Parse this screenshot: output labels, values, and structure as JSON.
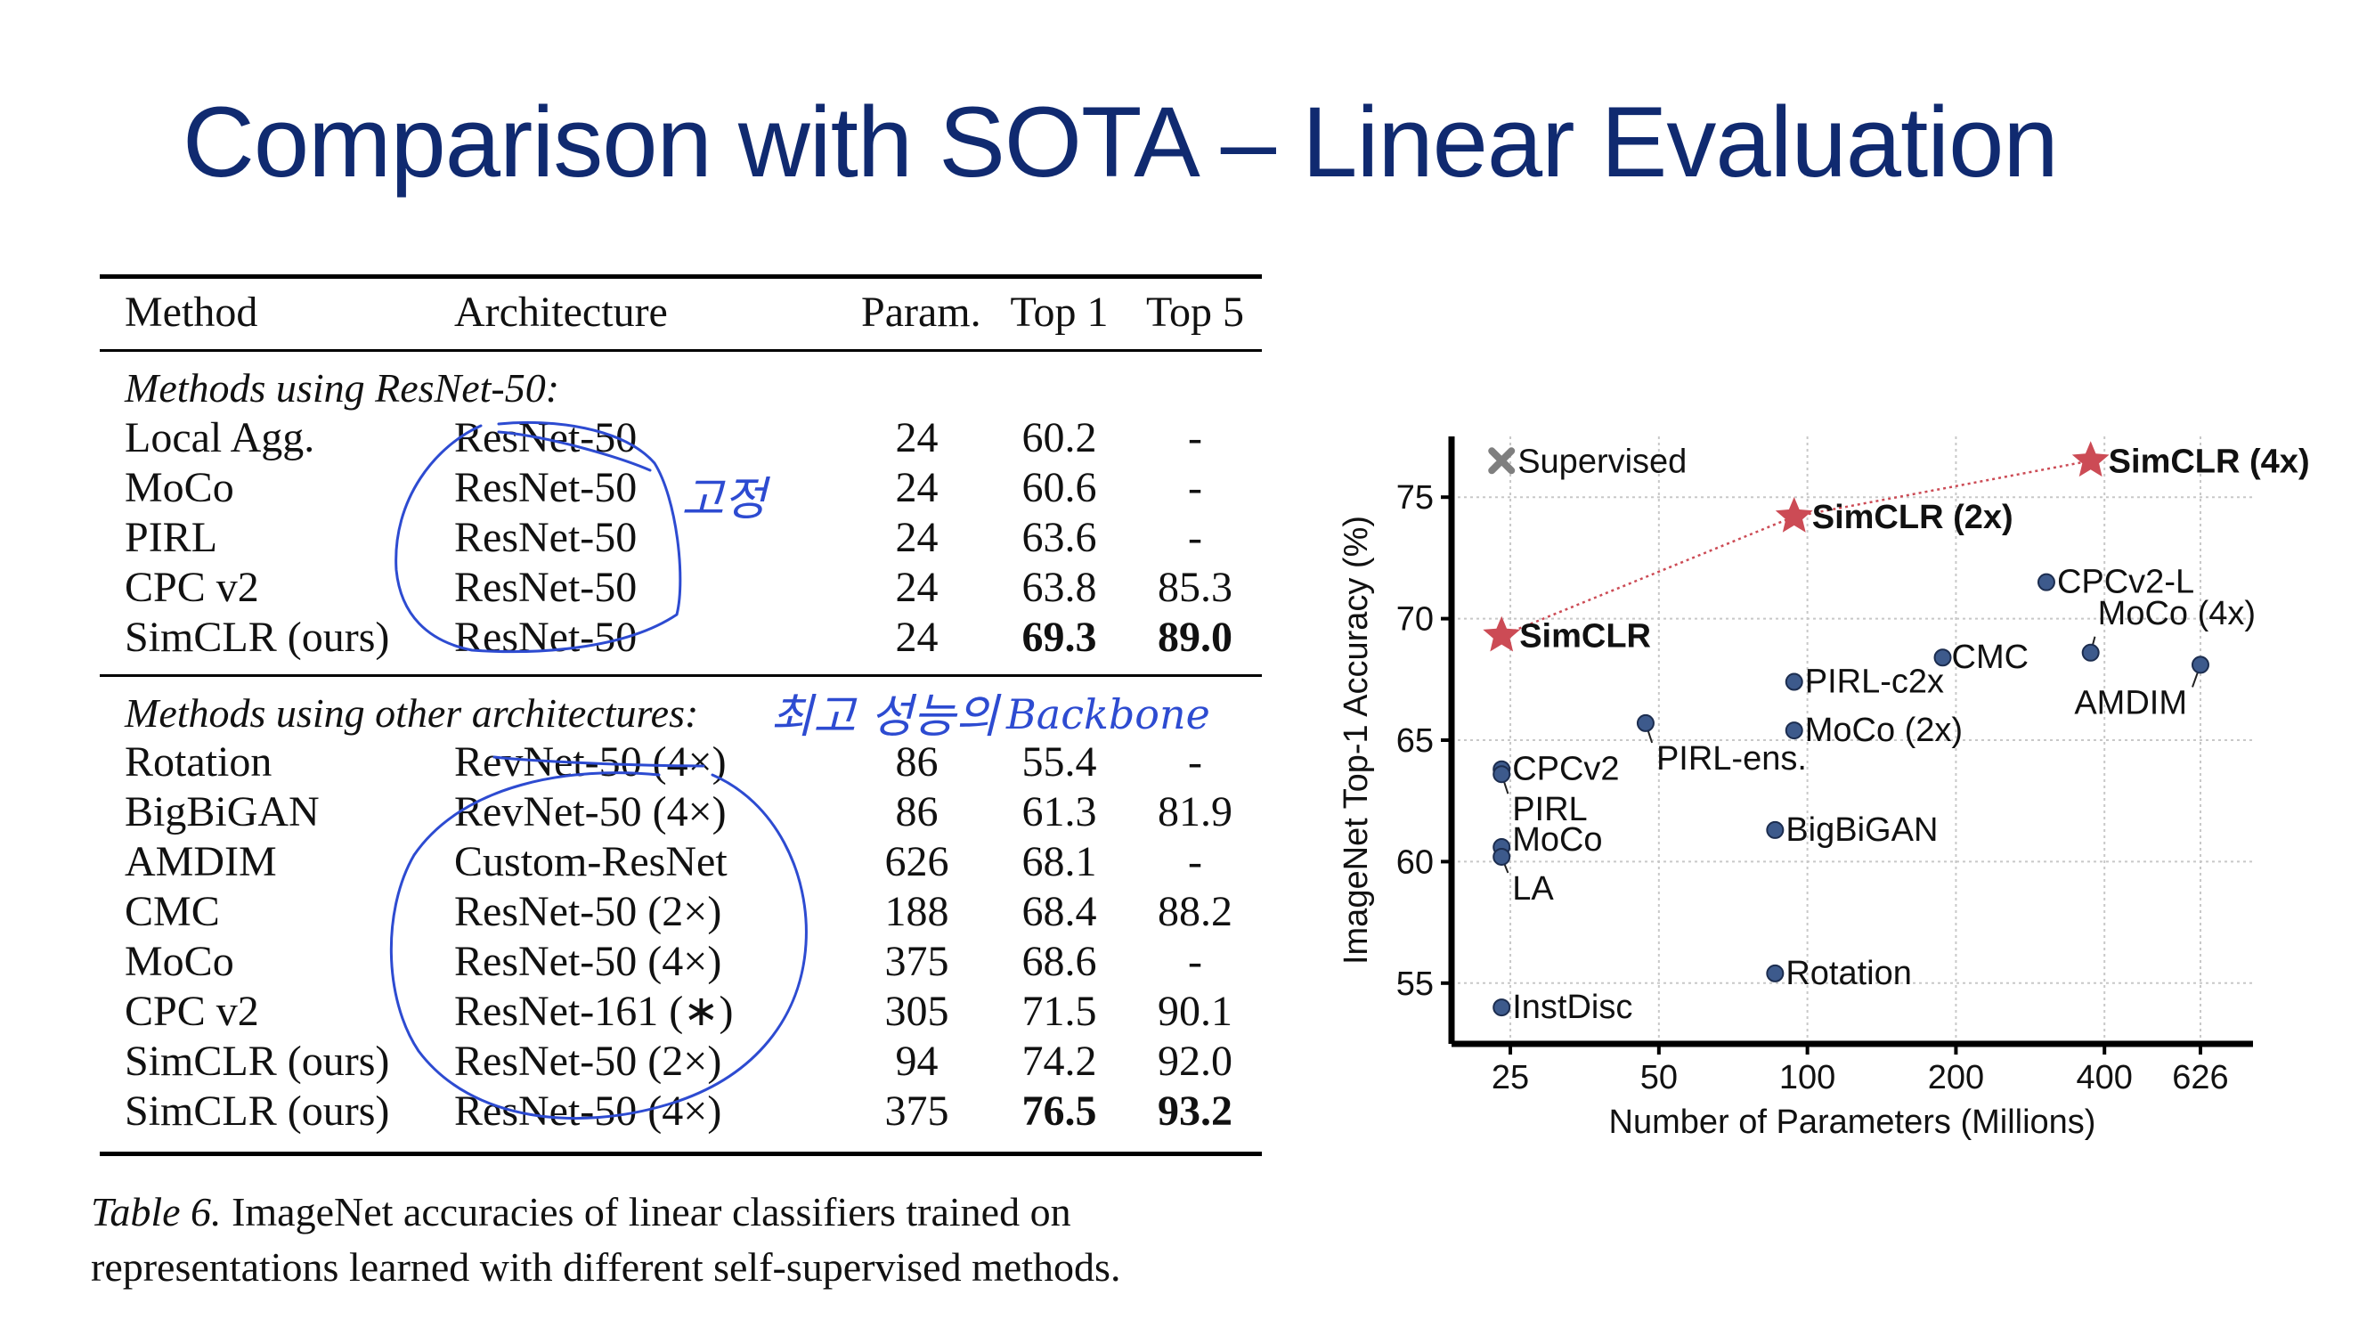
{
  "slide": {
    "title": "Comparison with SOTA – Linear Evaluation"
  },
  "table": {
    "headers": [
      "Method",
      "Architecture",
      "Param.",
      "Top 1",
      "Top 5"
    ],
    "section1_label": "Methods using ResNet-50:",
    "section1_rows": [
      {
        "method": "Local Agg.",
        "arch": "ResNet-50",
        "param": "24",
        "top1": "60.2",
        "top5": "-"
      },
      {
        "method": "MoCo",
        "arch": "ResNet-50",
        "param": "24",
        "top1": "60.6",
        "top5": "-"
      },
      {
        "method": "PIRL",
        "arch": "ResNet-50",
        "param": "24",
        "top1": "63.6",
        "top5": "-"
      },
      {
        "method": "CPC v2",
        "arch": "ResNet-50",
        "param": "24",
        "top1": "63.8",
        "top5": "85.3"
      },
      {
        "method": "SimCLR (ours)",
        "arch": "ResNet-50",
        "param": "24",
        "top1": "69.3",
        "top5": "89.0",
        "bold": true
      }
    ],
    "section2_label": "Methods using other architectures:",
    "section2_rows": [
      {
        "method": "Rotation",
        "arch": "RevNet-50 (4×)",
        "param": "86",
        "top1": "55.4",
        "top5": "-"
      },
      {
        "method": "BigBiGAN",
        "arch": "RevNet-50 (4×)",
        "param": "86",
        "top1": "61.3",
        "top5": "81.9"
      },
      {
        "method": "AMDIM",
        "arch": "Custom-ResNet",
        "param": "626",
        "top1": "68.1",
        "top5": "-"
      },
      {
        "method": "CMC",
        "arch": "ResNet-50 (2×)",
        "param": "188",
        "top1": "68.4",
        "top5": "88.2"
      },
      {
        "method": "MoCo",
        "arch": "ResNet-50 (4×)",
        "param": "375",
        "top1": "68.6",
        "top5": "-"
      },
      {
        "method": "CPC v2",
        "arch": "ResNet-161 (∗)",
        "param": "305",
        "top1": "71.5",
        "top5": "90.1"
      },
      {
        "method": "SimCLR (ours)",
        "arch": "ResNet-50 (2×)",
        "param": "94",
        "top1": "74.2",
        "top5": "92.0"
      },
      {
        "method": "SimCLR (ours)",
        "arch": "ResNet-50 (4×)",
        "param": "375",
        "top1": "76.5",
        "top5": "93.2",
        "bold": true
      }
    ],
    "caption_label": "Table 6.",
    "caption_text": " ImageNet accuracies of linear classifiers trained on representations learned with different self-supervised methods."
  },
  "annotations": {
    "note1": "고정",
    "note2": "최고 성능의",
    "note3": "Backbone",
    "ink_color": "#2d4bd1"
  },
  "chart_data": {
    "type": "scatter",
    "xlabel": "Number of Parameters (Millions)",
    "ylabel": "ImageNet Top-1 Accuracy (%)",
    "x_scale": "log",
    "x_ticks": [
      "25",
      "50",
      "100",
      "200",
      "400",
      "626"
    ],
    "x_tick_values": [
      25,
      50,
      100,
      200,
      400,
      626
    ],
    "y_ticks": [
      "55",
      "60",
      "65",
      "70",
      "75"
    ],
    "y_tick_values": [
      55,
      60,
      65,
      70,
      75
    ],
    "xlim": [
      19,
      800
    ],
    "ylim": [
      52.5,
      77.5
    ],
    "grid": true,
    "colors": {
      "simclr": "#cc4b55",
      "other": "#3d5a8c",
      "supervised": "#7f7f7f"
    },
    "supervised_marker": {
      "label": "Supervised",
      "x": 24,
      "y": 76.5
    },
    "simclr_points": [
      {
        "label": "SimCLR",
        "x": 24,
        "y": 69.3
      },
      {
        "label": "SimCLR (2x)",
        "x": 94,
        "y": 74.2
      },
      {
        "label": "SimCLR (4x)",
        "x": 375,
        "y": 76.5
      }
    ],
    "points": [
      {
        "label": "CPCv2-L",
        "x": 305,
        "y": 71.5
      },
      {
        "label": "MoCo (4x)",
        "x": 375,
        "y": 68.6
      },
      {
        "label": "AMDIM",
        "x": 626,
        "y": 68.1
      },
      {
        "label": "CMC",
        "x": 188,
        "y": 68.4
      },
      {
        "label": "PIRL-c2x",
        "x": 94,
        "y": 67.4
      },
      {
        "label": "MoCo (2x)",
        "x": 94,
        "y": 65.4
      },
      {
        "label": "PIRL-ens.",
        "x": 47,
        "y": 65.7
      },
      {
        "label": "CPCv2",
        "x": 24,
        "y": 63.8
      },
      {
        "label": "PIRL",
        "x": 24,
        "y": 63.6
      },
      {
        "label": "MoCo",
        "x": 24,
        "y": 60.6
      },
      {
        "label": "LA",
        "x": 24,
        "y": 60.2
      },
      {
        "label": "BigBiGAN",
        "x": 86,
        "y": 61.3
      },
      {
        "label": "Rotation",
        "x": 86,
        "y": 55.4
      },
      {
        "label": "InstDisc",
        "x": 24,
        "y": 54.0
      }
    ]
  }
}
